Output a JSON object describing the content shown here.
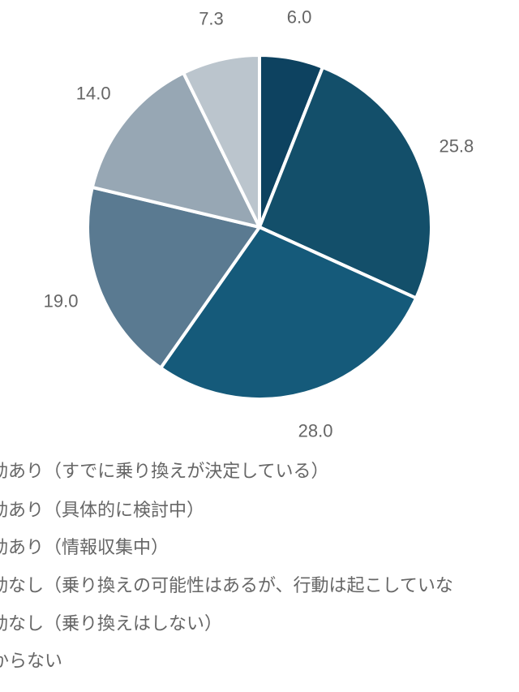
{
  "chart_data": {
    "type": "pie",
    "categories": [
      "動あり（すでに乗り換えが決定している）",
      "動あり（具体的に検討中）",
      "動あり（情報収集中）",
      "動なし（乗り換えの可能性はあるが、行動は起こしていな",
      "動なし（乗り換えはしない）",
      "からない"
    ],
    "values": [
      6.0,
      25.8,
      28.0,
      19.0,
      14.0,
      7.3
    ],
    "value_labels": [
      "6.0",
      "25.8",
      "28.0",
      "19.0",
      "14.0",
      "7.3"
    ],
    "colors": [
      "#0d4260",
      "#134f6a",
      "#155a7a",
      "#5a7a91",
      "#97a7b4",
      "#bbc5cd"
    ]
  }
}
